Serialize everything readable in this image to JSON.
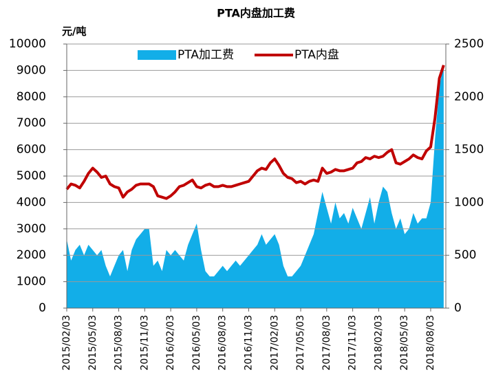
{
  "chart_data": {
    "type": "line-area",
    "title": "PTA内盘加工费",
    "y_label": "元/吨",
    "categories": [
      "2015/02/03",
      null,
      null,
      null,
      null,
      null,
      "2015/05/03",
      null,
      null,
      null,
      null,
      null,
      "2015/08/03",
      null,
      null,
      null,
      null,
      null,
      "2015/11/03",
      null,
      null,
      null,
      null,
      null,
      "2016/02/03",
      null,
      null,
      null,
      null,
      null,
      "2016/05/03",
      null,
      null,
      null,
      null,
      null,
      "2016/08/03",
      null,
      null,
      null,
      null,
      null,
      "2016/11/03",
      null,
      null,
      null,
      null,
      null,
      "2017/02/03",
      null,
      null,
      null,
      null,
      null,
      "2017/05/03",
      null,
      null,
      null,
      null,
      null,
      "2017/08/03",
      null,
      null,
      null,
      null,
      null,
      "2017/11/03",
      null,
      null,
      null,
      null,
      null,
      "2018/02/03",
      null,
      null,
      null,
      null,
      null,
      "2018/05/03",
      null,
      null,
      null,
      null,
      null,
      "2018/08/03",
      null,
      null,
      null
    ],
    "series": [
      {
        "name": "PTA加工费",
        "color": "#12aee8",
        "axis": "y2",
        "kind": "area",
        "values": [
          650,
          450,
          550,
          600,
          500,
          600,
          550,
          500,
          550,
          400,
          300,
          400,
          500,
          550,
          350,
          550,
          650,
          700,
          750,
          750,
          400,
          450,
          350,
          550,
          500,
          550,
          500,
          450,
          600,
          700,
          800,
          550,
          350,
          300,
          300,
          350,
          400,
          350,
          400,
          450,
          400,
          450,
          500,
          550,
          600,
          700,
          600,
          650,
          700,
          600,
          400,
          300,
          300,
          350,
          400,
          500,
          600,
          700,
          900,
          1100,
          950,
          800,
          1000,
          850,
          900,
          800,
          950,
          850,
          750,
          900,
          1050,
          800,
          1000,
          1150,
          1100,
          900,
          750,
          850,
          700,
          750,
          900,
          800,
          850,
          850,
          1000,
          1600,
          2100,
          2300
        ]
      },
      {
        "name": "PTA内盘",
        "color": "#c00000",
        "axis": "y",
        "kind": "line",
        "values": [
          4500,
          4700,
          4650,
          4550,
          4800,
          5100,
          5300,
          5150,
          4950,
          5000,
          4700,
          4600,
          4550,
          4200,
          4400,
          4500,
          4650,
          4700,
          4700,
          4700,
          4600,
          4250,
          4200,
          4150,
          4250,
          4400,
          4600,
          4650,
          4750,
          4850,
          4600,
          4550,
          4650,
          4700,
          4600,
          4600,
          4650,
          4600,
          4600,
          4650,
          4700,
          4750,
          4800,
          5000,
          5200,
          5300,
          5250,
          5500,
          5650,
          5400,
          5100,
          4950,
          4900,
          4750,
          4800,
          4700,
          4800,
          4850,
          4800,
          5300,
          5100,
          5150,
          5250,
          5200,
          5200,
          5250,
          5300,
          5500,
          5550,
          5700,
          5650,
          5750,
          5700,
          5750,
          5900,
          6000,
          5500,
          5450,
          5550,
          5650,
          5800,
          5700,
          5650,
          5950,
          6100,
          7200,
          8700,
          9200
        ]
      }
    ],
    "ylim": [
      0,
      10000
    ],
    "yticks": [
      0,
      1000,
      2000,
      3000,
      4000,
      5000,
      6000,
      7000,
      8000,
      9000,
      10000
    ],
    "y2lim": [
      0,
      2500
    ],
    "y2ticks": [
      0,
      500,
      1000,
      1500,
      2000,
      2500
    ],
    "grid": true,
    "legend": "top"
  }
}
